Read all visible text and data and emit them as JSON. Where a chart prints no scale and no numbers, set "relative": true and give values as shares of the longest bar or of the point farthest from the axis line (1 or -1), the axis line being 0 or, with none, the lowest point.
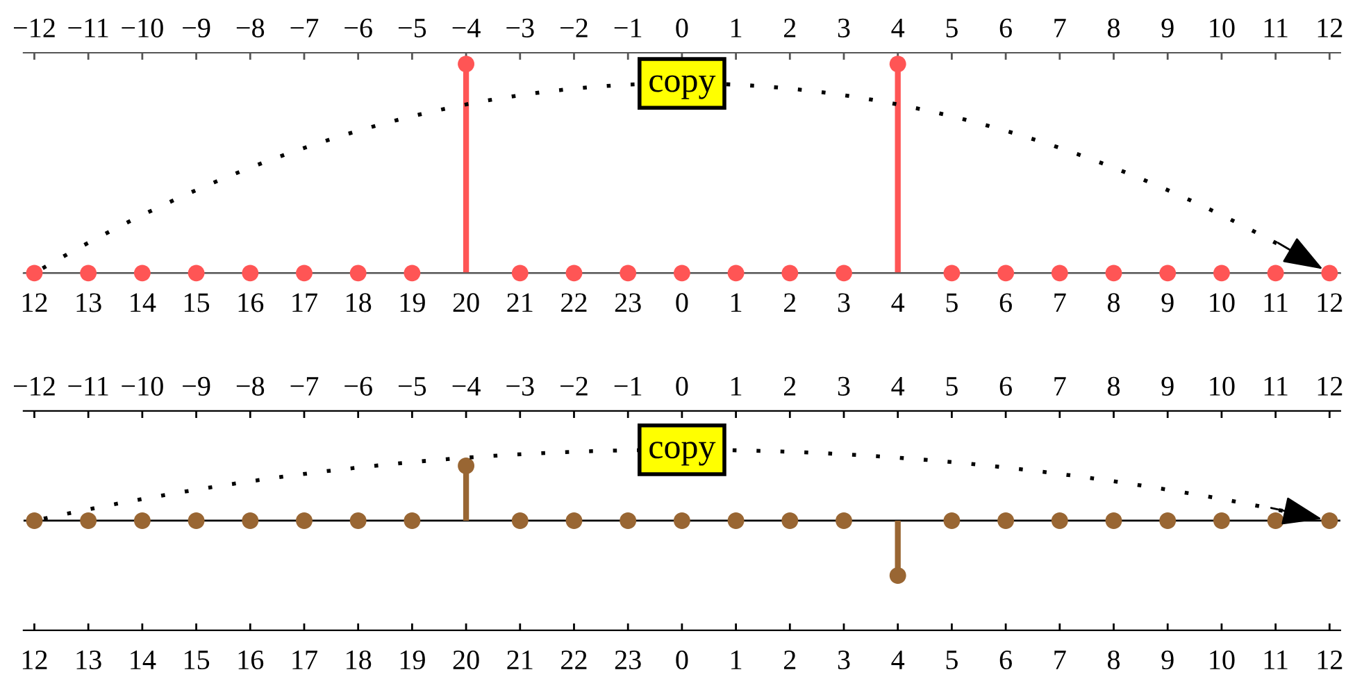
{
  "chart_data": [
    {
      "type": "lollipop",
      "relative": true,
      "marker": "circle",
      "annotations": [
        "copy"
      ],
      "categories": [
        "12",
        "13",
        "14",
        "15",
        "16",
        "17",
        "18",
        "19",
        "20",
        "21",
        "22",
        "23",
        "0",
        "1",
        "2",
        "3",
        "4",
        "5",
        "6",
        "7",
        "8",
        "9",
        "10",
        "11",
        "12"
      ],
      "series": [
        {
          "color": "#ff5555",
          "values": [
            0,
            0,
            0,
            0,
            0,
            0,
            0,
            0,
            1,
            0,
            0,
            0,
            0,
            0,
            0,
            0,
            1,
            0,
            0,
            0,
            0,
            0,
            0,
            0,
            0
          ]
        }
      ],
      "x2lim": [
        -12.2,
        12.2
      ],
      "x2ticks": [
        -12,
        -11,
        -10,
        -9,
        -8,
        -7,
        -6,
        -5,
        -4,
        -3,
        -2,
        -1,
        0,
        1,
        2,
        3,
        4,
        5,
        6,
        7,
        8,
        9,
        10,
        11,
        12
      ]
    },
    {
      "type": "lollipop",
      "relative": true,
      "marker": "circle",
      "annotations": [
        "copy"
      ],
      "categories": [
        "12",
        "13",
        "14",
        "15",
        "16",
        "17",
        "18",
        "19",
        "20",
        "21",
        "22",
        "23",
        "0",
        "1",
        "2",
        "3",
        "4",
        "5",
        "6",
        "7",
        "8",
        "9",
        "10",
        "11",
        "12"
      ],
      "series": [
        {
          "color": "#996633",
          "values": [
            0,
            0,
            0,
            0,
            0,
            0,
            0,
            0,
            1,
            0,
            0,
            0,
            0,
            0,
            0,
            0,
            -1,
            0,
            0,
            0,
            0,
            0,
            0,
            0,
            0
          ]
        }
      ],
      "x2lim": [
        -12.2,
        12.2
      ],
      "x2ticks": [
        -12,
        -11,
        -10,
        -9,
        -8,
        -7,
        -6,
        -5,
        -4,
        -3,
        -2,
        -1,
        0,
        1,
        2,
        3,
        4,
        5,
        6,
        7,
        8,
        9,
        10,
        11,
        12
      ]
    }
  ]
}
